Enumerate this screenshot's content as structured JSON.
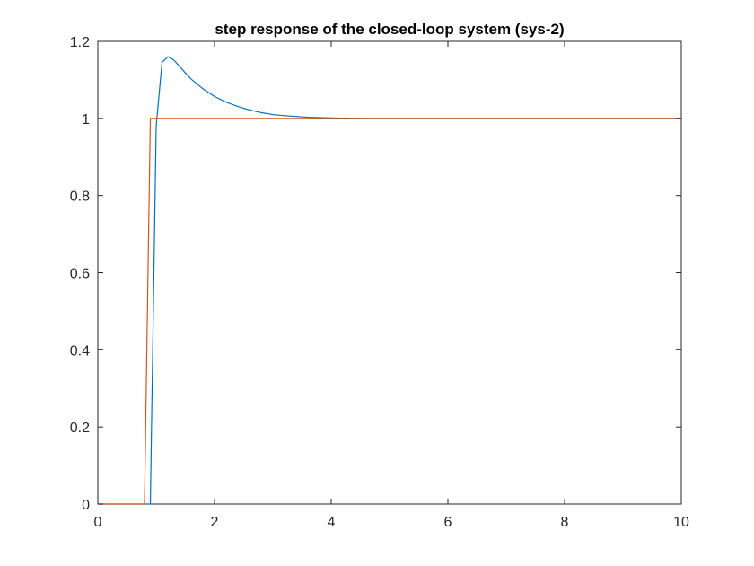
{
  "chart_data": {
    "type": "line",
    "title": "step response of the closed-loop system (sys-2)",
    "xlabel": "",
    "ylabel": "",
    "xlim": [
      0,
      10
    ],
    "ylim": [
      0,
      1.2
    ],
    "xticks": [
      0,
      2,
      4,
      6,
      8,
      10
    ],
    "xtick_labels": [
      "0",
      "2",
      "4",
      "6",
      "8",
      "10"
    ],
    "yticks": [
      0,
      0.2,
      0.4,
      0.6,
      0.8,
      1.0,
      1.2
    ],
    "ytick_labels": [
      "0",
      "0.2",
      "0.4",
      "0.6",
      "0.8",
      "1",
      "1.2"
    ],
    "grid": false,
    "series": [
      {
        "color": "#0072BD",
        "x": [
          0,
          0.9,
          0.9,
          1.0,
          1.1,
          1.2,
          1.3,
          1.4,
          1.5,
          1.6,
          1.8,
          2.0,
          2.2,
          2.4,
          2.6,
          2.8,
          3.0,
          3.2,
          3.4,
          3.6,
          3.8,
          4.0,
          4.3,
          4.6,
          5.0,
          6.0,
          7.0,
          8.0,
          9.0,
          10.0
        ],
        "y": [
          0,
          0,
          0,
          0.98,
          1.145,
          1.16,
          1.152,
          1.135,
          1.118,
          1.102,
          1.077,
          1.057,
          1.042,
          1.031,
          1.022,
          1.015,
          1.01,
          1.007,
          1.005,
          1.003,
          1.002,
          1.001,
          1.0005,
          1.0,
          1.0,
          1.0,
          1.0,
          1.0,
          1.0,
          1.0
        ]
      },
      {
        "color": "#D95319",
        "x": [
          0,
          0.8,
          0.9,
          10.0
        ],
        "y": [
          0,
          0,
          1,
          1
        ]
      }
    ]
  }
}
